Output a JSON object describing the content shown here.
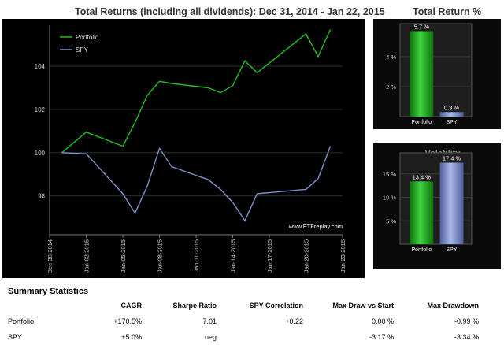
{
  "main_chart": {
    "title": "Total Returns (including all dividends): Dec 31, 2014 - Jan 22, 2015",
    "watermark": "www.ETFreplay.com",
    "colors": {
      "background": "#000000",
      "portfolio": "#1fbf1f",
      "spy": "#7f93c9",
      "grid": "#2e2e2e",
      "tick_text": "#cccccc"
    }
  },
  "side_charts": {
    "total_return": {
      "title": "Total Return %"
    },
    "volatility": {
      "title": "Volatility"
    }
  },
  "summary": {
    "title": "Summary Statistics",
    "headers": [
      "",
      "CAGR",
      "Sharpe Ratio",
      "SPY Correlation",
      "Max Draw vs Start",
      "Max Drawdown"
    ],
    "rows": [
      [
        "Portfolio",
        "+170.5%",
        "7.01",
        "+0.22",
        "0.00 %",
        "-0.99 %"
      ],
      [
        "SPY",
        "+5.0%",
        "neg",
        "",
        "-3.17 %",
        "-3.34 %"
      ]
    ]
  },
  "chart_data": [
    {
      "type": "line",
      "title": "Total Returns (including all dividends): Dec 31, 2014 - Jan 22, 2015",
      "x_ticks": [
        "Dec-30-2014",
        "Jan-02-2015",
        "Jan-05-2015",
        "Jan-08-2015",
        "Jan-11-2015",
        "Jan-14-2015",
        "Jan-17-2015",
        "Jan-20-2015",
        "Jan-23-2015"
      ],
      "x_range": [
        "2014-12-30",
        "2015-01-23"
      ],
      "ylim": [
        96.2,
        105.9
      ],
      "y_ticks": [
        98,
        100,
        102,
        104
      ],
      "grid": true,
      "legend": "top-left",
      "series": [
        {
          "name": "Portfolio",
          "color": "#1fbf1f",
          "points": [
            [
              "2014-12-31",
              100.0
            ],
            [
              "2015-01-02",
              100.95
            ],
            [
              "2015-01-05",
              100.3
            ],
            [
              "2015-01-06",
              101.4
            ],
            [
              "2015-01-07",
              102.65
            ],
            [
              "2015-01-08",
              103.3
            ],
            [
              "2015-01-09",
              103.2
            ],
            [
              "2015-01-12",
              103.0
            ],
            [
              "2015-01-13",
              102.78
            ],
            [
              "2015-01-14",
              103.1
            ],
            [
              "2015-01-15",
              104.25
            ],
            [
              "2015-01-16",
              103.7
            ],
            [
              "2015-01-20",
              105.5
            ],
            [
              "2015-01-21",
              104.45
            ],
            [
              "2015-01-22",
              105.7
            ]
          ]
        },
        {
          "name": "SPY",
          "color": "#7f93c9",
          "points": [
            [
              "2014-12-31",
              100.0
            ],
            [
              "2015-01-02",
              99.95
            ],
            [
              "2015-01-05",
              98.1
            ],
            [
              "2015-01-06",
              97.2
            ],
            [
              "2015-01-07",
              98.45
            ],
            [
              "2015-01-08",
              100.2
            ],
            [
              "2015-01-09",
              99.35
            ],
            [
              "2015-01-12",
              98.75
            ],
            [
              "2015-01-13",
              98.3
            ],
            [
              "2015-01-14",
              97.7
            ],
            [
              "2015-01-15",
              96.85
            ],
            [
              "2015-01-16",
              98.1
            ],
            [
              "2015-01-20",
              98.3
            ],
            [
              "2015-01-21",
              98.8
            ],
            [
              "2015-01-22",
              100.3
            ]
          ]
        }
      ]
    },
    {
      "type": "bar",
      "title": "Total Return %",
      "categories": [
        "Portfolio",
        "SPY"
      ],
      "values": [
        5.7,
        0.3
      ],
      "data_labels": [
        "5.7 %",
        "0.3 %"
      ],
      "colors": [
        "#1fbf1f",
        "#7f93c9"
      ],
      "ylim": [
        0,
        6.2
      ],
      "y_ticks": [
        2,
        4
      ],
      "y_tick_labels": [
        "2 %",
        "4 %"
      ]
    },
    {
      "type": "bar",
      "title": "Volatility",
      "categories": [
        "Portfolio",
        "SPY"
      ],
      "values": [
        13.4,
        17.4
      ],
      "data_labels": [
        "13.4 %",
        "17.4 %"
      ],
      "colors": [
        "#1fbf1f",
        "#7f93c9"
      ],
      "ylim": [
        0,
        19.5
      ],
      "y_ticks": [
        5,
        10,
        15
      ],
      "y_tick_labels": [
        "5 %",
        "10 %",
        "15 %"
      ]
    }
  ]
}
